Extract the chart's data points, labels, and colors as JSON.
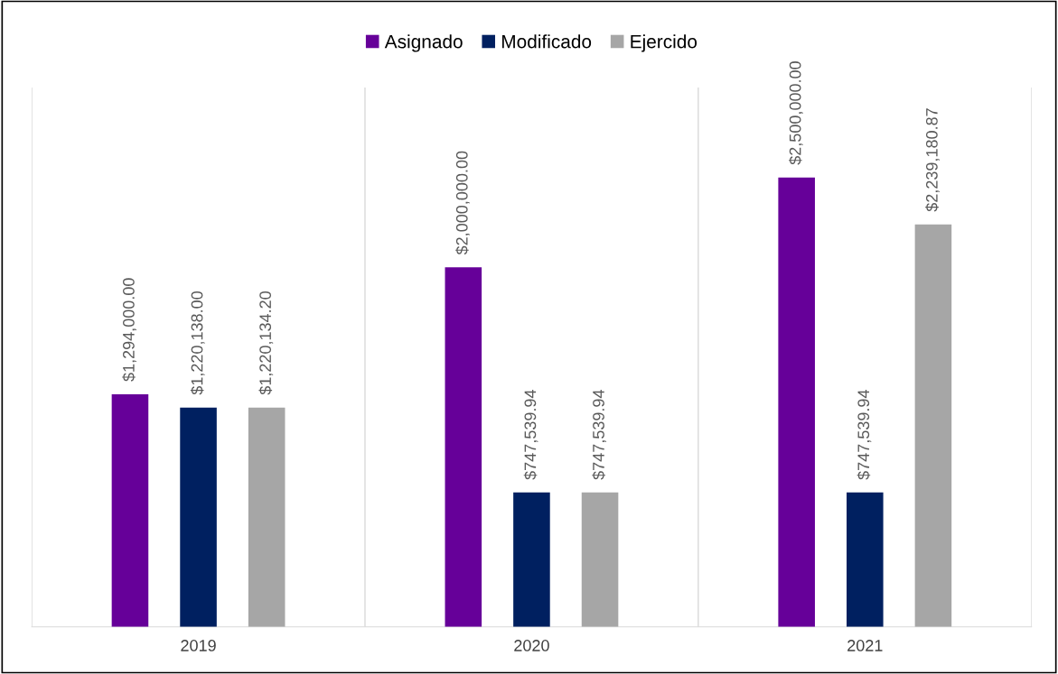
{
  "chart_data": {
    "type": "bar",
    "categories": [
      "2019",
      "2020",
      "2021"
    ],
    "series": [
      {
        "name": "Asignado",
        "color": "#660099",
        "values": [
          1294000.0,
          2000000.0,
          2500000.0
        ],
        "value_labels": [
          "$1,294,000.00",
          "$2,000,000.00",
          "$2,500,000.00"
        ]
      },
      {
        "name": "Modificado",
        "color": "#002060",
        "values": [
          1220138.0,
          747539.94,
          747539.94
        ],
        "value_labels": [
          "$1,220,138.00",
          "$747,539.94",
          "$747,539.94"
        ]
      },
      {
        "name": "Ejercido",
        "color": "#a6a6a6",
        "values": [
          1220134.2,
          747539.94,
          2239180.87
        ],
        "value_labels": [
          "$1,220,134.20",
          "$747,539.94",
          "$2,239,180.87"
        ]
      }
    ],
    "ylim": [
      0,
      3000000
    ],
    "tick_labels": "x",
    "grid": "x",
    "legend": "top"
  }
}
